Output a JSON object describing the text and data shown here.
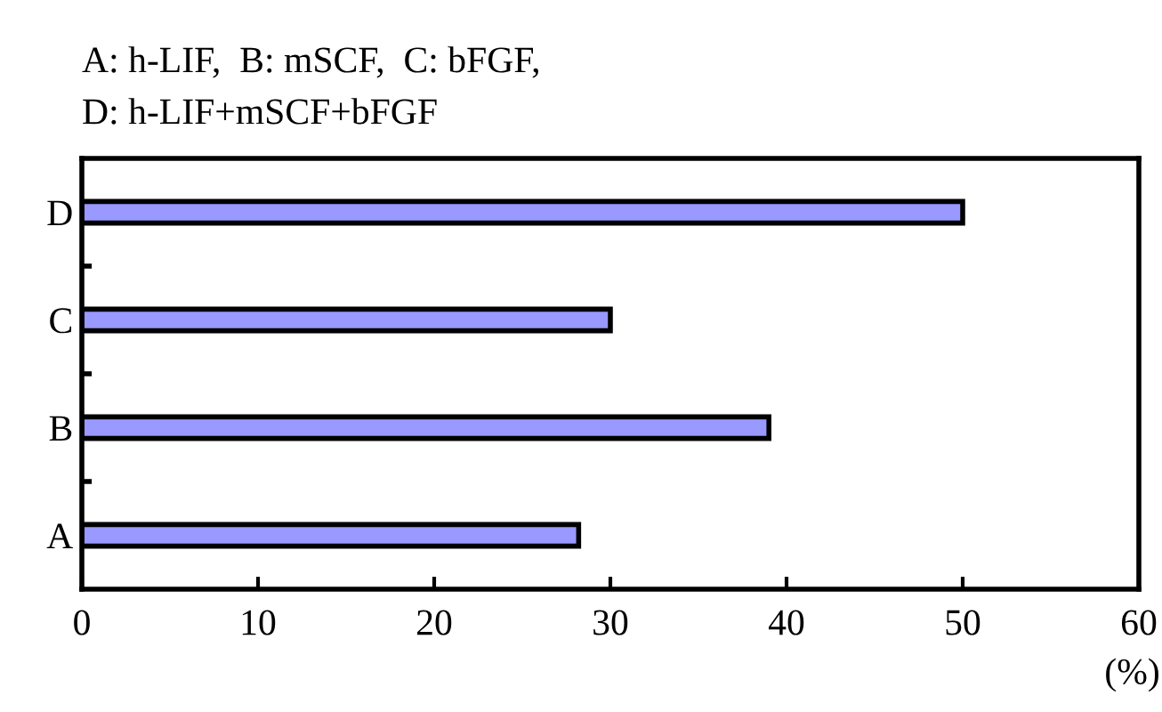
{
  "chart_data": {
    "type": "bar",
    "orientation": "horizontal",
    "title": "A: h-LIF,  B: mSCF,  C: bFGF,\nD: h-LIF+mSCF+bFGF",
    "xlabel": "(%)",
    "categories": [
      "D",
      "C",
      "B",
      "A"
    ],
    "values": [
      50,
      30,
      39,
      28.2
    ],
    "color": "#9999ff",
    "xlim": [
      0,
      60
    ],
    "xticks": [
      0,
      10,
      20,
      30,
      40,
      50,
      60
    ],
    "grid": false
  }
}
